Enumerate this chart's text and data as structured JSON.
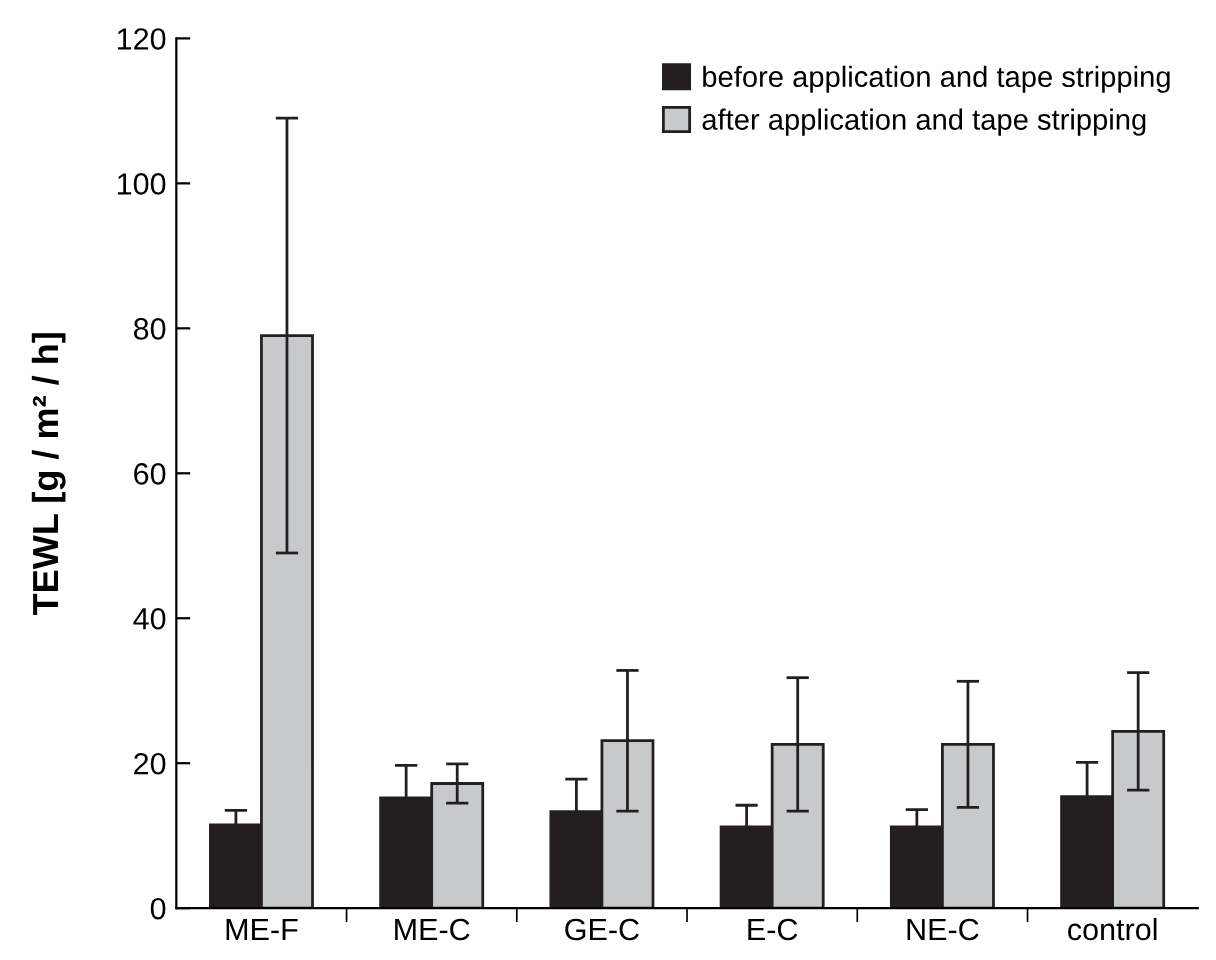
{
  "chart_data": {
    "type": "bar",
    "ylabel": "TEWL [g / m² / h]",
    "categories": [
      "ME-F",
      "ME-C",
      "GE-C",
      "E-C",
      "NE-C",
      "control"
    ],
    "series": [
      {
        "name": "before application and tape stripping",
        "color": "#231f20",
        "values": [
          11.5,
          15.2,
          13.3,
          11.2,
          11.2,
          15.4
        ],
        "errors": [
          2,
          4.5,
          4.5,
          3,
          2.4,
          4.7
        ]
      },
      {
        "name": "after application and tape stripping",
        "color": "#c8c9cb",
        "values": [
          79,
          17.2,
          23.1,
          22.6,
          22.6,
          24.4
        ],
        "errors": [
          30,
          2.7,
          9.7,
          9.2,
          8.7,
          8.1
        ]
      }
    ],
    "ylim": [
      0,
      120
    ],
    "yticks": [
      0,
      20,
      40,
      60,
      80,
      100,
      120
    ],
    "grid": false,
    "legend": "top right"
  }
}
